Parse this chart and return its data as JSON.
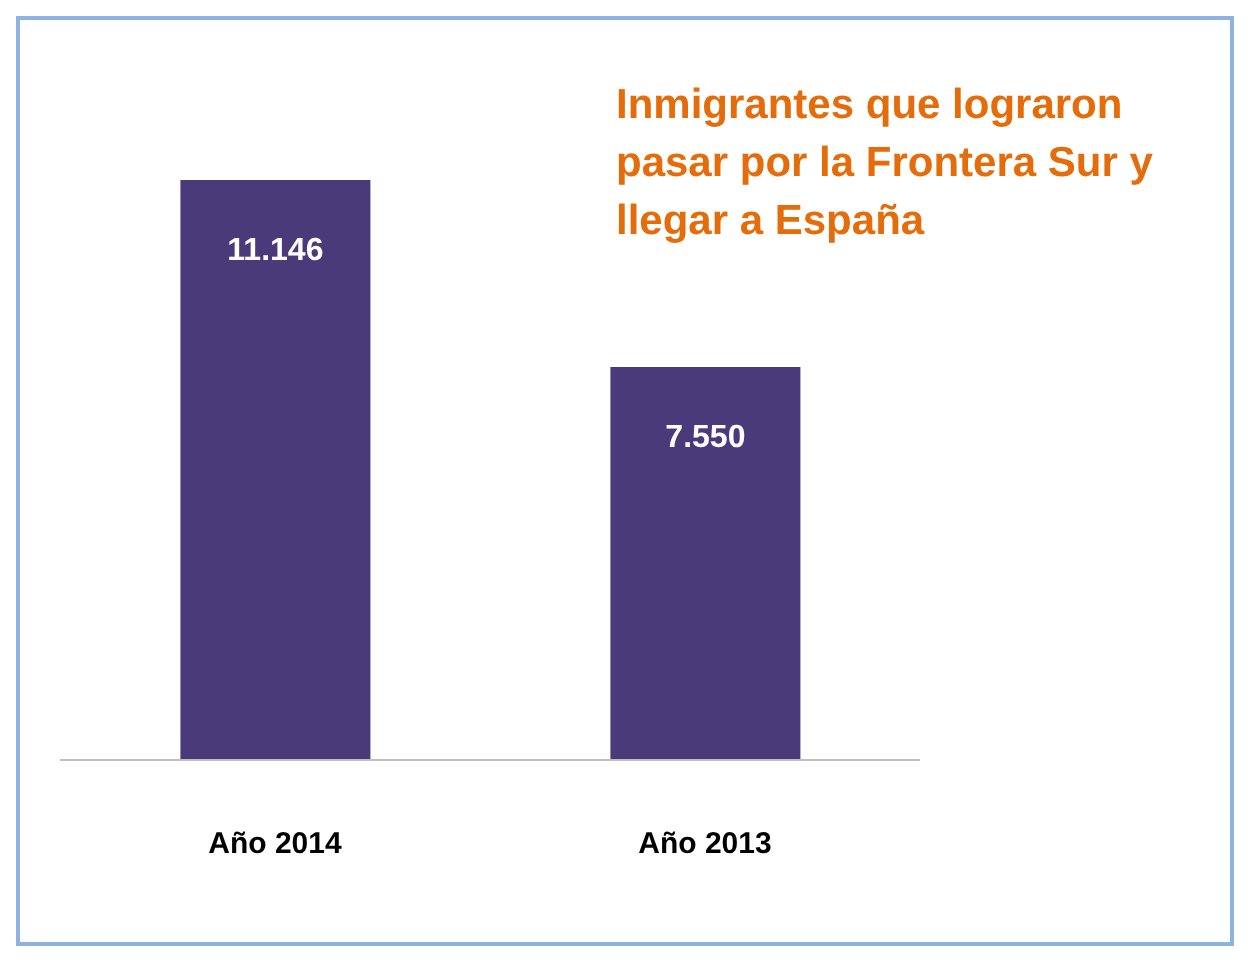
{
  "chart_data": {
    "type": "bar",
    "title": "Inmigrantes que lograron pasar por la Frontera Sur y llegar a España",
    "categories": [
      "Año 2014",
      "Año 2013"
    ],
    "values": [
      11146,
      7550
    ],
    "value_labels": [
      "11.146",
      "7.550"
    ],
    "color": "#4b3a7a"
  }
}
